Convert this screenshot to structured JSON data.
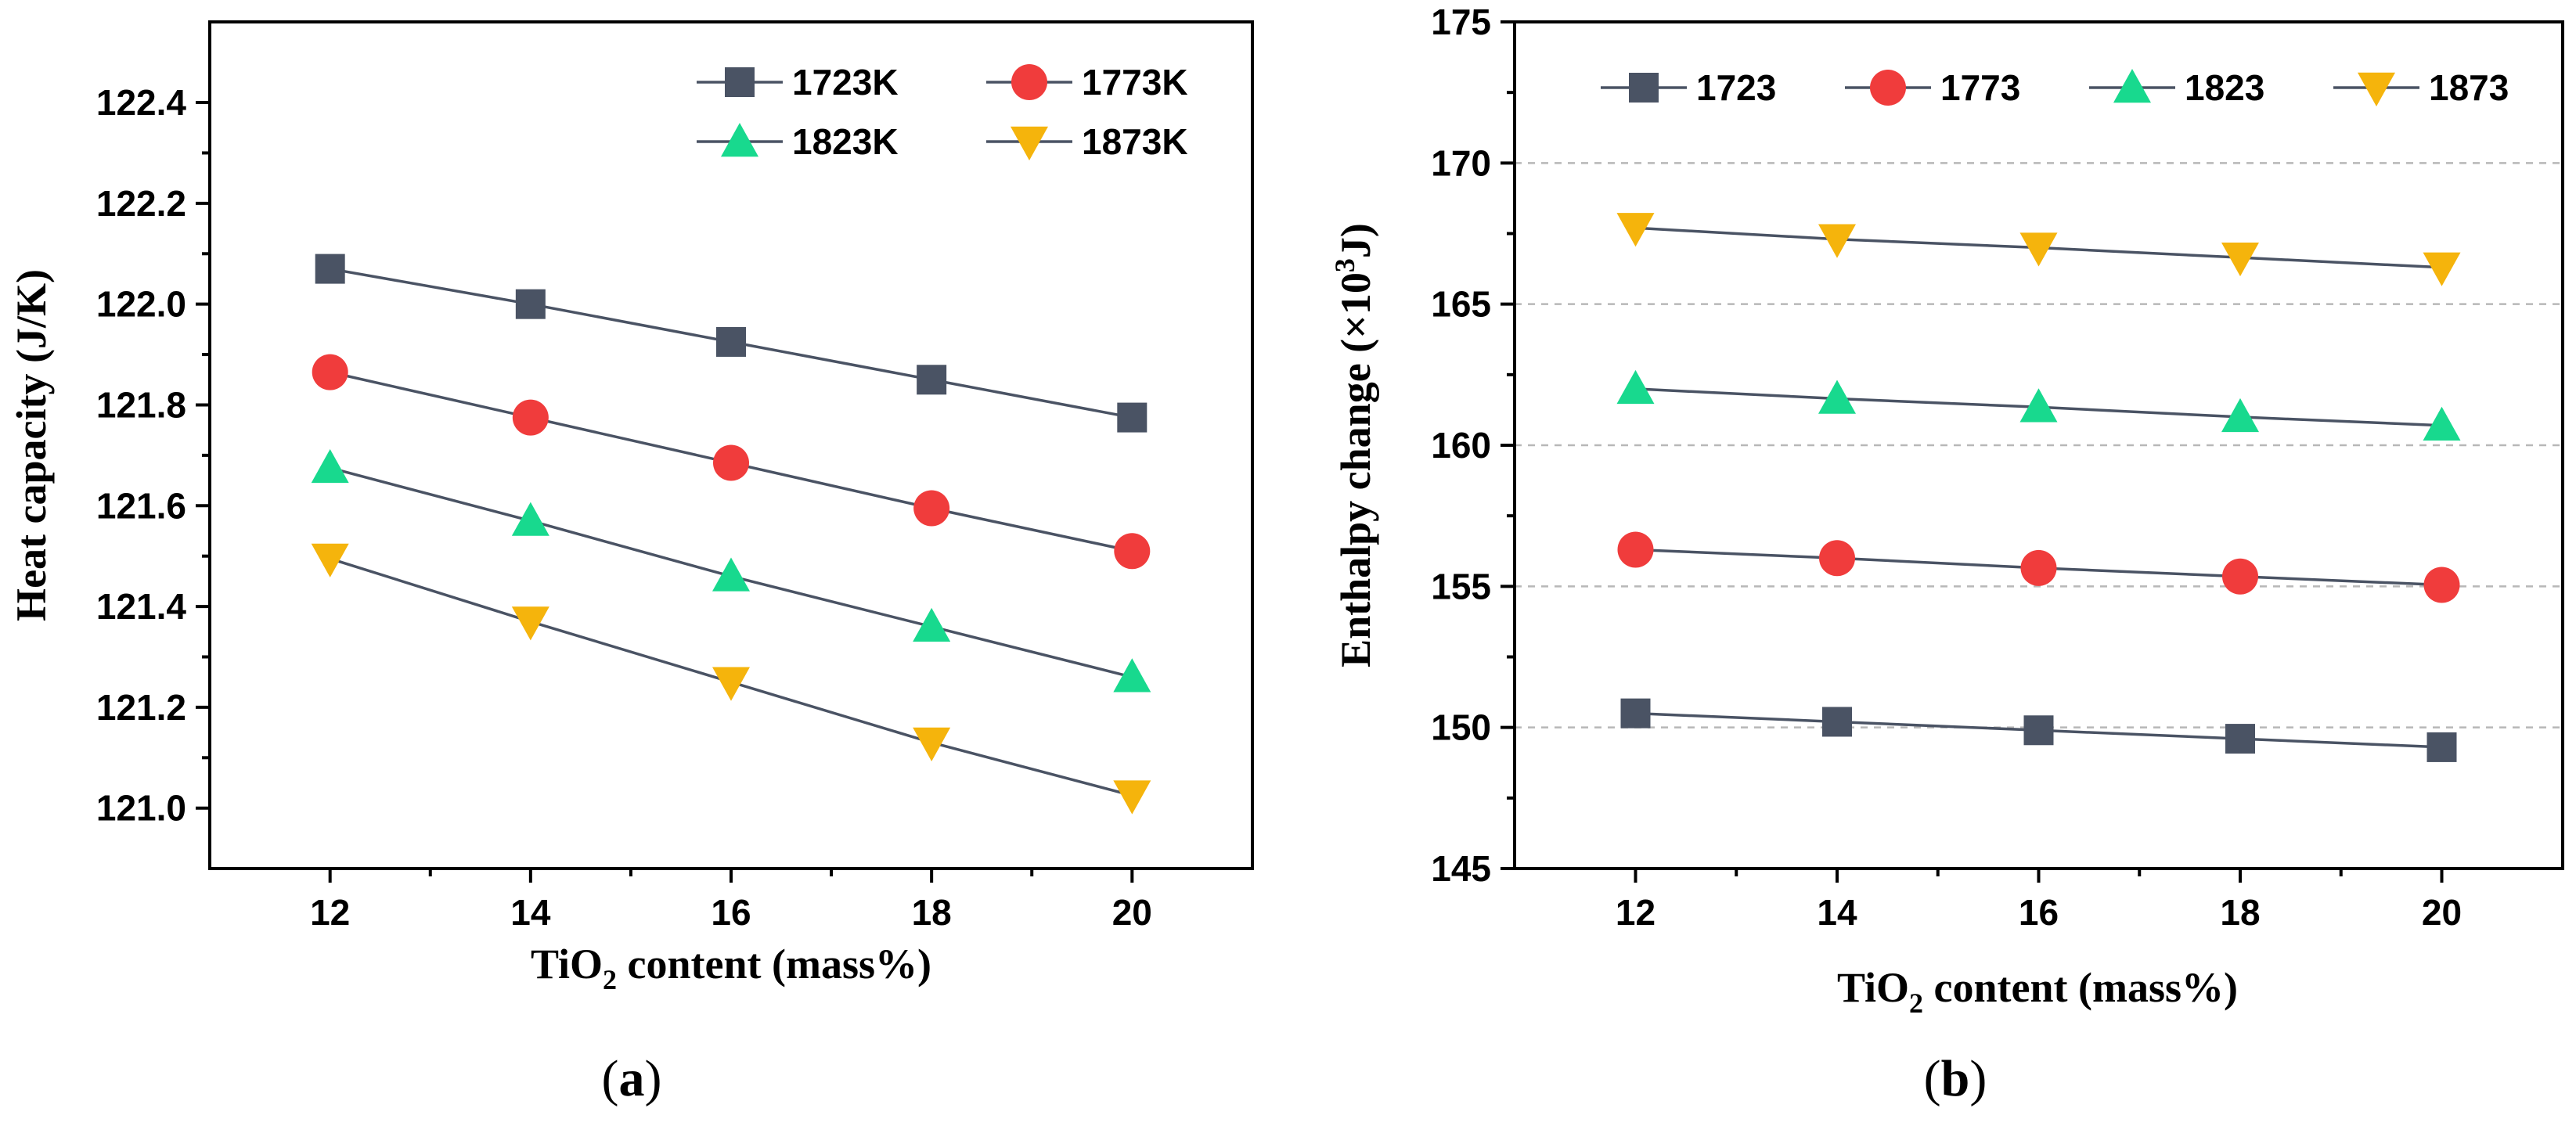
{
  "chart_data": [
    {
      "panel": "a",
      "caption_letter": "a",
      "type": "line",
      "xlabel_prefix": "TiO",
      "xlabel_sub": "2",
      "xlabel_suffix": " content (mass%)",
      "ylabel": "Heat capacity (J/K)",
      "xlim": [
        10.8,
        21.2
      ],
      "ylim": [
        120.88,
        122.56
      ],
      "x_ticks": [
        12,
        14,
        16,
        18,
        20
      ],
      "y_ticks": [
        121.0,
        121.2,
        121.4,
        121.6,
        121.8,
        122.0,
        122.2,
        122.4
      ],
      "y_decimals": 1,
      "grid": false,
      "x": [
        12,
        14,
        16,
        18,
        20
      ],
      "series": [
        {
          "name": "1723K",
          "marker": "square",
          "color": "#4a5364",
          "values": [
            122.07,
            122.0,
            121.925,
            121.85,
            121.775
          ]
        },
        {
          "name": "1773K",
          "marker": "circle",
          "color": "#f03c3c",
          "values": [
            121.865,
            121.775,
            121.685,
            121.595,
            121.51
          ]
        },
        {
          "name": "1823K",
          "marker": "triangle-up",
          "color": "#18d98e",
          "values": [
            121.675,
            121.57,
            121.46,
            121.36,
            121.26
          ]
        },
        {
          "name": "1873K",
          "marker": "triangle-down",
          "color": "#f5b40c",
          "values": [
            121.495,
            121.37,
            121.25,
            121.13,
            121.025
          ]
        }
      ]
    },
    {
      "panel": "b",
      "caption_letter": "b",
      "type": "line",
      "xlabel_prefix": "TiO",
      "xlabel_sub": "2",
      "xlabel_suffix": " content (mass%)",
      "ylabel_prefix": "Enthalpy change (×10",
      "ylabel_sup": "3",
      "ylabel_suffix": "J)",
      "xlim": [
        10.8,
        21.2
      ],
      "ylim": [
        145,
        175
      ],
      "x_ticks": [
        12,
        14,
        16,
        18,
        20
      ],
      "y_ticks": [
        145,
        150,
        155,
        160,
        165,
        170,
        175
      ],
      "y_decimals": 0,
      "grid": true,
      "x": [
        12,
        14,
        16,
        18,
        20
      ],
      "series": [
        {
          "name": "1723",
          "marker": "square",
          "color": "#4a5364",
          "values": [
            150.5,
            150.2,
            149.9,
            149.6,
            149.3
          ]
        },
        {
          "name": "1773",
          "marker": "circle",
          "color": "#f03c3c",
          "values": [
            156.3,
            156.0,
            155.65,
            155.35,
            155.05
          ]
        },
        {
          "name": "1823",
          "marker": "triangle-up",
          "color": "#18d98e",
          "values": [
            162.0,
            161.65,
            161.35,
            161.0,
            160.7
          ]
        },
        {
          "name": "1873",
          "marker": "triangle-down",
          "color": "#f5b40c",
          "values": [
            167.7,
            167.3,
            167.0,
            166.65,
            166.3
          ]
        }
      ]
    }
  ]
}
